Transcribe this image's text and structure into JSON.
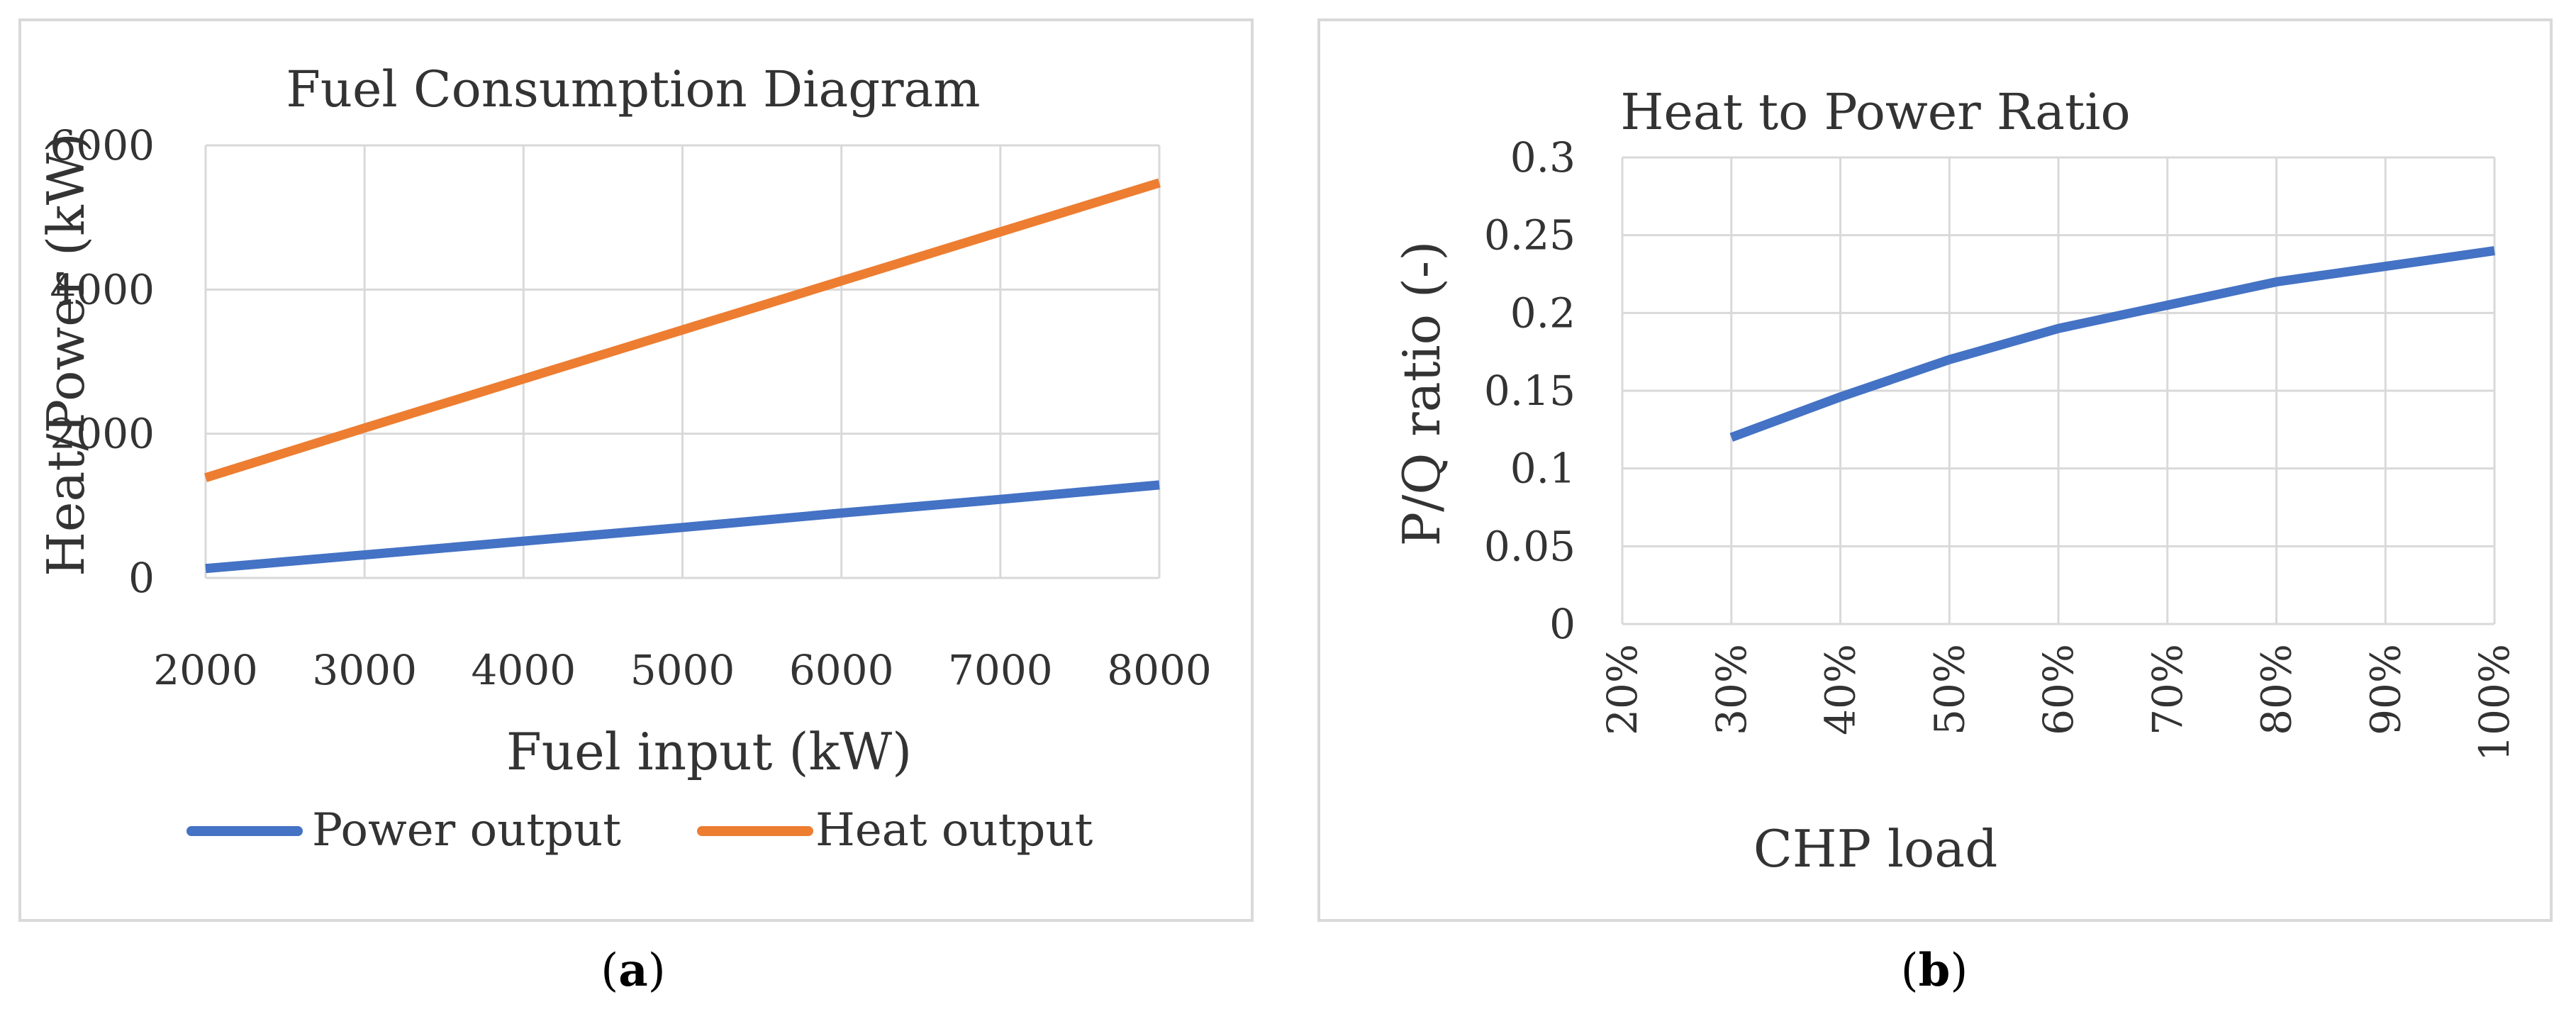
{
  "chart_data": [
    {
      "type": "line",
      "panel_label": "a",
      "title": "Fuel Consumption Diagram",
      "xlabel": "Fuel input (kW)",
      "ylabel": "Heat/Power (kW)",
      "xlim": [
        2000,
        8000
      ],
      "ylim": [
        0,
        6000
      ],
      "x_ticks": [
        2000,
        3000,
        4000,
        5000,
        6000,
        7000,
        8000
      ],
      "y_ticks": [
        0,
        2000,
        4000,
        6000
      ],
      "grid": true,
      "legend_position": "bottom",
      "series": [
        {
          "name": "Power output",
          "color": "#4472C4",
          "x": [
            2000,
            3000,
            4000,
            5000,
            6000,
            7000,
            8000
          ],
          "y": [
            130,
            320,
            510,
            700,
            900,
            1090,
            1290
          ]
        },
        {
          "name": "Heat output",
          "color": "#ED7D31",
          "x": [
            2000,
            3000,
            4000,
            5000,
            6000,
            7000,
            8000
          ],
          "y": [
            1390,
            2080,
            2760,
            3440,
            4120,
            4800,
            5480
          ]
        }
      ]
    },
    {
      "type": "line",
      "panel_label": "b",
      "title": "Heat to Power Ratio",
      "xlabel": "CHP load",
      "ylabel": "P/Q ratio (-)",
      "categories": [
        "20%",
        "30%",
        "40%",
        "50%",
        "60%",
        "70%",
        "80%",
        "90%",
        "100%"
      ],
      "ylim": [
        0,
        0.3
      ],
      "y_ticks": [
        "0",
        "0.05",
        "0.1",
        "0.15",
        "0.2",
        "0.25",
        "0.3"
      ],
      "grid": true,
      "legend_position": "none",
      "series": [
        {
          "name": "P/Q ratio",
          "color": "#4472C4",
          "values": [
            null,
            0.12,
            0.146,
            0.17,
            0.19,
            0.205,
            0.22,
            0.23,
            0.24
          ]
        }
      ]
    }
  ]
}
